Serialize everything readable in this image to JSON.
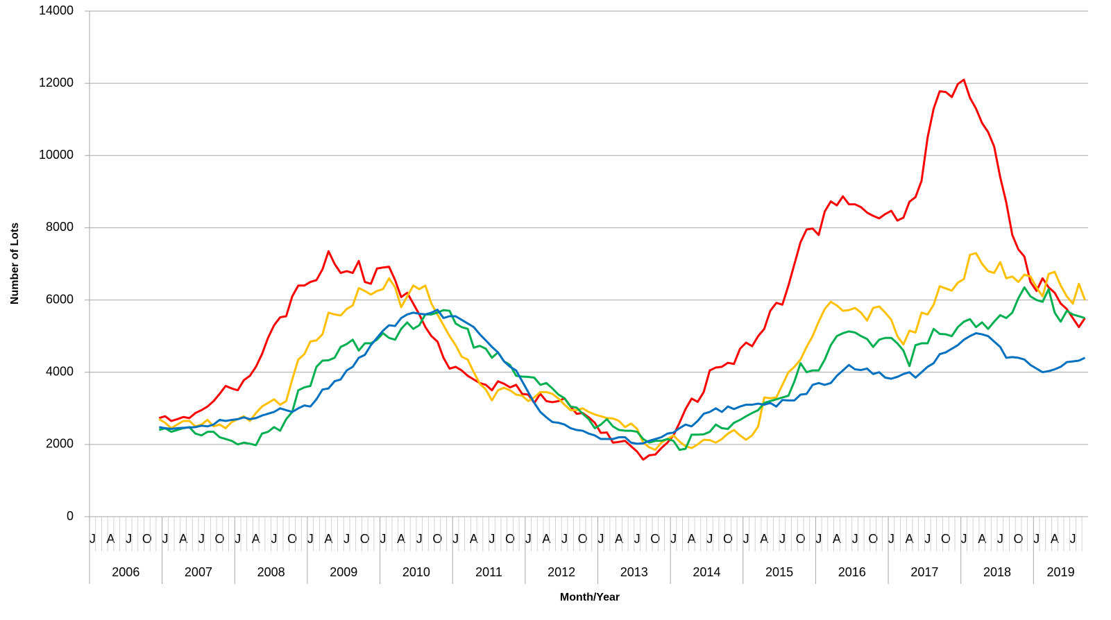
{
  "chart_data": {
    "type": "line",
    "y_label": "Number of Lots",
    "x_label": "Month/Year",
    "categories": [
      "J",
      null,
      null,
      "A",
      null,
      null,
      "J",
      null,
      null,
      "O",
      null,
      null,
      "J",
      null,
      null,
      "A",
      null,
      null,
      "J",
      null,
      null,
      "O",
      null,
      null,
      "J",
      null,
      null,
      "A",
      null,
      null,
      "J",
      null,
      null,
      "O",
      null,
      null,
      "J",
      null,
      null,
      "A",
      null,
      null,
      "J",
      null,
      null,
      "O",
      null,
      null,
      "J",
      null,
      null,
      "A",
      null,
      null,
      "J",
      null,
      null,
      "O",
      null,
      null,
      "J",
      null,
      null,
      "A",
      null,
      null,
      "J",
      null,
      null,
      "O",
      null,
      null,
      "J",
      null,
      null,
      "A",
      null,
      null,
      "J",
      null,
      null,
      "O",
      null,
      null,
      "J",
      null,
      null,
      "A",
      null,
      null,
      "J",
      null,
      null,
      "O",
      null,
      null,
      "J",
      null,
      null,
      "A",
      null,
      null,
      "J",
      null,
      null,
      "O",
      null,
      null,
      "J",
      null,
      null,
      "A",
      null,
      null,
      "J",
      null,
      null,
      "O",
      null,
      null,
      "J",
      null,
      null,
      "A",
      null,
      null,
      "J",
      null,
      null,
      "O",
      null,
      null,
      "J",
      null,
      null,
      "A",
      null,
      null,
      "J",
      null,
      null,
      "O",
      null,
      null,
      "J",
      null,
      null,
      "A",
      null,
      null,
      "J",
      null,
      null,
      "O",
      null,
      null,
      "J",
      null,
      null,
      "A",
      null,
      null,
      "J",
      null,
      null
    ],
    "years": [
      "2006",
      "2007",
      "2008",
      "2009",
      "2010",
      "2011",
      "2012",
      "2013",
      "2014",
      "2015",
      "2016",
      "2017",
      "2018",
      "2019"
    ],
    "ylim": [
      0,
      14000
    ],
    "yticks": [
      0,
      2000,
      4000,
      6000,
      8000,
      10000,
      12000,
      14000
    ],
    "grid": true,
    "series": [
      {
        "color": "#ff0000",
        "values": [
          null,
          null,
          null,
          null,
          null,
          null,
          null,
          null,
          null,
          null,
          null,
          2730,
          2780,
          2650,
          2700,
          2760,
          2730,
          2870,
          2950,
          3050,
          3200,
          3400,
          3620,
          3550,
          3500,
          3780,
          3900,
          4150,
          4500,
          4950,
          5300,
          5520,
          5550,
          6100,
          6400,
          6400,
          6500,
          6550,
          6850,
          7350,
          7000,
          6750,
          6800,
          6750,
          7080,
          6500,
          6450,
          6870,
          6900,
          6920,
          6550,
          6080,
          6200,
          5900,
          5600,
          5250,
          5000,
          4850,
          4400,
          4100,
          4150,
          4050,
          3900,
          3800,
          3700,
          3650,
          3500,
          3750,
          3680,
          3580,
          3650,
          3400,
          3380,
          3150,
          3400,
          3200,
          3170,
          3200,
          3280,
          3050,
          2850,
          2870,
          2750,
          2600,
          2320,
          2330,
          2050,
          2070,
          2100,
          1950,
          1800,
          1580,
          1700,
          1720,
          1900,
          2050,
          2250,
          2600,
          2980,
          3270,
          3180,
          3450,
          4050,
          4130,
          4150,
          4260,
          4230,
          4650,
          4820,
          4720,
          5000,
          5200,
          5700,
          5920,
          5870,
          6400,
          7000,
          7600,
          7950,
          7980,
          7800,
          8450,
          8730,
          8620,
          8870,
          8650,
          8650,
          8570,
          8420,
          8330,
          8260,
          8380,
          8470,
          8200,
          8280,
          8720,
          8850,
          9300,
          10500,
          11300,
          11780,
          11760,
          11620,
          11980,
          12100,
          11600,
          11300,
          10900,
          10650,
          10250,
          9400,
          8700,
          7800,
          7400,
          7200,
          6500,
          6250,
          6600,
          6350,
          6200,
          5900,
          5750,
          5500,
          5250,
          5500
        ]
      },
      {
        "color": "#ffc000",
        "values": [
          null,
          null,
          null,
          null,
          null,
          null,
          null,
          null,
          null,
          null,
          null,
          2700,
          2600,
          2450,
          2550,
          2650,
          2650,
          2500,
          2550,
          2680,
          2500,
          2550,
          2450,
          2620,
          2700,
          2780,
          2650,
          2870,
          3050,
          3150,
          3250,
          3100,
          3200,
          3800,
          4350,
          4500,
          4850,
          4880,
          5050,
          5650,
          5600,
          5570,
          5750,
          5850,
          6330,
          6250,
          6150,
          6250,
          6300,
          6600,
          6350,
          5800,
          6100,
          6400,
          6300,
          6400,
          5900,
          5600,
          5300,
          5000,
          4750,
          4430,
          4350,
          4000,
          3680,
          3520,
          3220,
          3500,
          3570,
          3500,
          3380,
          3350,
          3200,
          3300,
          3450,
          3450,
          3400,
          3270,
          3100,
          2950,
          2950,
          3000,
          2900,
          2830,
          2780,
          2730,
          2720,
          2650,
          2480,
          2580,
          2430,
          2050,
          1920,
          1850,
          2050,
          2150,
          2250,
          2080,
          1950,
          1900,
          2000,
          2130,
          2120,
          2050,
          2150,
          2300,
          2400,
          2250,
          2130,
          2250,
          2500,
          3300,
          3280,
          3300,
          3650,
          4000,
          4150,
          4350,
          4700,
          5000,
          5400,
          5750,
          5950,
          5850,
          5700,
          5720,
          5780,
          5650,
          5430,
          5780,
          5820,
          5650,
          5450,
          5000,
          4770,
          5150,
          5100,
          5650,
          5600,
          5870,
          6380,
          6320,
          6260,
          6480,
          6580,
          7250,
          7300,
          7000,
          6800,
          6750,
          7050,
          6600,
          6650,
          6500,
          6700,
          6650,
          6350,
          6100,
          6720,
          6780,
          6400,
          6100,
          5900,
          6450,
          6000
        ]
      },
      {
        "color": "#00b050",
        "values": [
          null,
          null,
          null,
          null,
          null,
          null,
          null,
          null,
          null,
          null,
          null,
          2400,
          2450,
          2350,
          2400,
          2450,
          2480,
          2300,
          2250,
          2350,
          2350,
          2200,
          2150,
          2100,
          2000,
          2050,
          2020,
          1980,
          2300,
          2350,
          2480,
          2380,
          2700,
          2900,
          3500,
          3580,
          3620,
          4150,
          4320,
          4330,
          4400,
          4700,
          4780,
          4900,
          4600,
          4800,
          4800,
          4900,
          5080,
          4950,
          4900,
          5200,
          5380,
          5200,
          5300,
          5600,
          5600,
          5650,
          5720,
          5700,
          5350,
          5250,
          5200,
          4680,
          4730,
          4650,
          4400,
          4550,
          4300,
          4200,
          3900,
          3880,
          3870,
          3850,
          3650,
          3700,
          3550,
          3380,
          3280,
          3050,
          3020,
          2850,
          2700,
          2450,
          2550,
          2700,
          2500,
          2400,
          2380,
          2380,
          2350,
          2150,
          2050,
          2100,
          2100,
          2150,
          2100,
          1850,
          1880,
          2270,
          2270,
          2280,
          2350,
          2550,
          2450,
          2430,
          2600,
          2680,
          2780,
          2870,
          2950,
          3150,
          3200,
          3250,
          3300,
          3350,
          3750,
          4250,
          4000,
          4050,
          4050,
          4350,
          4750,
          5000,
          5080,
          5130,
          5100,
          5000,
          4920,
          4700,
          4900,
          4950,
          4950,
          4800,
          4600,
          4170,
          4750,
          4800,
          4800,
          5200,
          5060,
          5050,
          5000,
          5250,
          5400,
          5470,
          5250,
          5380,
          5200,
          5400,
          5580,
          5500,
          5650,
          6050,
          6350,
          6100,
          6000,
          5950,
          6300,
          5650,
          5400,
          5700,
          5600,
          5550,
          5500
        ]
      },
      {
        "color": "#0070c0",
        "values": [
          null,
          null,
          null,
          null,
          null,
          null,
          null,
          null,
          null,
          null,
          null,
          2480,
          2450,
          2430,
          2450,
          2460,
          2470,
          2480,
          2520,
          2500,
          2550,
          2680,
          2650,
          2680,
          2700,
          2750,
          2700,
          2730,
          2800,
          2850,
          2900,
          3000,
          2950,
          2900,
          3000,
          3080,
          3050,
          3250,
          3520,
          3550,
          3750,
          3800,
          4050,
          4150,
          4400,
          4480,
          4750,
          4950,
          5150,
          5300,
          5280,
          5500,
          5600,
          5650,
          5620,
          5600,
          5650,
          5730,
          5500,
          5550,
          5550,
          5450,
          5350,
          5250,
          5050,
          4880,
          4700,
          4550,
          4300,
          4150,
          4050,
          3750,
          3450,
          3150,
          2900,
          2750,
          2620,
          2600,
          2550,
          2450,
          2400,
          2380,
          2300,
          2250,
          2150,
          2150,
          2150,
          2200,
          2200,
          2050,
          2020,
          2030,
          2100,
          2150,
          2200,
          2300,
          2330,
          2450,
          2550,
          2500,
          2650,
          2850,
          2900,
          3000,
          2900,
          3050,
          2980,
          3050,
          3100,
          3100,
          3130,
          3100,
          3150,
          3050,
          3230,
          3220,
          3220,
          3380,
          3400,
          3650,
          3700,
          3650,
          3700,
          3900,
          4050,
          4200,
          4080,
          4060,
          4100,
          3950,
          4000,
          3850,
          3820,
          3870,
          3950,
          4000,
          3850,
          4000,
          4150,
          4250,
          4500,
          4550,
          4650,
          4750,
          4900,
          5000,
          5080,
          5050,
          5000,
          4850,
          4700,
          4400,
          4420,
          4400,
          4350,
          4200,
          4100,
          4000,
          4030,
          4080,
          4150,
          4280,
          4300,
          4320,
          4400
        ]
      }
    ]
  }
}
